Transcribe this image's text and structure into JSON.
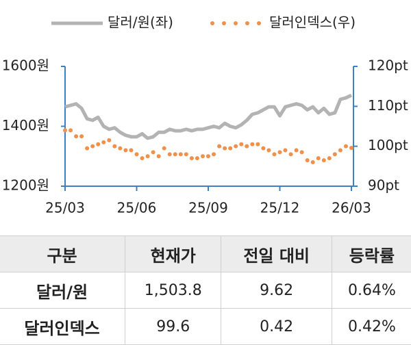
{
  "chart_data": {
    "type": "line",
    "categories": [
      "25/03",
      null,
      null,
      null,
      null,
      null,
      null,
      null,
      null,
      null,
      null,
      null,
      null,
      "25/06",
      null,
      null,
      null,
      null,
      null,
      null,
      null,
      null,
      null,
      null,
      null,
      null,
      "25/09",
      null,
      null,
      null,
      null,
      null,
      null,
      null,
      null,
      null,
      null,
      null,
      null,
      "25/12",
      null,
      null,
      null,
      null,
      null,
      null,
      null,
      null,
      null,
      null,
      null,
      null,
      "26/03"
    ],
    "series": [
      {
        "name": "달러/원(좌)",
        "color": "#b3b3b3",
        "style": "line",
        "values": [
          1465,
          1470,
          1475,
          1460,
          1425,
          1420,
          1430,
          1400,
          1390,
          1395,
          1380,
          1370,
          1365,
          1365,
          1375,
          1360,
          1365,
          1380,
          1380,
          1390,
          1385,
          1385,
          1390,
          1385,
          1390,
          1390,
          1395,
          1400,
          1395,
          1410,
          1400,
          1395,
          1405,
          1420,
          1440,
          1445,
          1455,
          1465,
          1465,
          1435,
          1465,
          1470,
          1475,
          1470,
          1455,
          1465,
          1445,
          1460,
          1440,
          1445,
          1490,
          1495,
          1503.8
        ]
      },
      {
        "name": "달러인덱스(우)",
        "color": "#f0904a",
        "style": "dots",
        "axis": "y2",
        "values": [
          104,
          104,
          102.5,
          102.5,
          99.5,
          100,
          100.5,
          101,
          101.5,
          100,
          99.5,
          99,
          99,
          98,
          97,
          97.5,
          98.5,
          97.5,
          99.5,
          98,
          98,
          98,
          98,
          97,
          97,
          97.5,
          97.5,
          98,
          100,
          99.5,
          99.5,
          100,
          100.5,
          100,
          100.5,
          100.5,
          99.5,
          99,
          98,
          98.5,
          99,
          98,
          99,
          98.5,
          96.5,
          96,
          97,
          96.5,
          97,
          98,
          99,
          100,
          99.6
        ]
      }
    ],
    "ylim": [
      1200,
      1600
    ],
    "yticks": [
      {
        "value": 1200,
        "label": "1200원"
      },
      {
        "value": 1400,
        "label": "1400원"
      },
      {
        "value": 1600,
        "label": "1600원"
      }
    ],
    "y2lim": [
      90,
      120
    ],
    "y2ticks": [
      {
        "value": 90,
        "label": "90pt"
      },
      {
        "value": 100,
        "label": "100pt"
      },
      {
        "value": 110,
        "label": "110pt"
      },
      {
        "value": 120,
        "label": "120pt"
      }
    ]
  },
  "table": {
    "header": [
      "구분",
      "현재가",
      "전일 대비",
      "등락률"
    ],
    "rows": [
      [
        "달러/원",
        "1,503.8",
        "9.62",
        "0.64%"
      ],
      [
        "달러인덱스",
        "99.6",
        "0.42",
        "0.42%"
      ]
    ]
  }
}
